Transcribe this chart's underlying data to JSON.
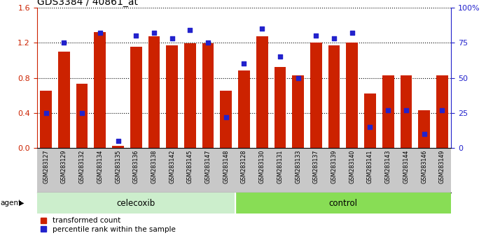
{
  "title": "GDS3384 / 40861_at",
  "samples": [
    "GSM283127",
    "GSM283129",
    "GSM283132",
    "GSM283134",
    "GSM283135",
    "GSM283136",
    "GSM283138",
    "GSM283142",
    "GSM283145",
    "GSM283147",
    "GSM283148",
    "GSM283128",
    "GSM283130",
    "GSM283131",
    "GSM283133",
    "GSM283137",
    "GSM283139",
    "GSM283140",
    "GSM283141",
    "GSM283143",
    "GSM283144",
    "GSM283146",
    "GSM283149"
  ],
  "transformed_count": [
    0.65,
    1.1,
    0.73,
    1.32,
    0.03,
    1.15,
    1.27,
    1.17,
    1.19,
    1.19,
    0.65,
    0.88,
    1.27,
    0.92,
    0.83,
    1.2,
    1.17,
    1.2,
    0.62,
    0.83,
    0.83,
    0.43,
    0.83
  ],
  "percentile_rank": [
    25,
    75,
    25,
    82,
    5,
    80,
    82,
    78,
    84,
    75,
    22,
    60,
    85,
    65,
    50,
    80,
    78,
    82,
    15,
    27,
    27,
    10,
    27
  ],
  "celecoxib_count": 11,
  "bar_color": "#cc2200",
  "dot_color": "#2222cc",
  "left_ylim": [
    0,
    1.6
  ],
  "right_ylim": [
    0,
    100
  ],
  "left_yticks": [
    0,
    0.4,
    0.8,
    1.2,
    1.6
  ],
  "right_yticks": [
    0,
    25,
    50,
    75,
    100
  ],
  "right_yticklabels": [
    "0",
    "25",
    "50",
    "75",
    "100%"
  ],
  "legend_items": [
    "transformed count",
    "percentile rank within the sample"
  ],
  "group_labels": [
    "celecoxib",
    "control"
  ],
  "celecoxib_bg": "#cceecc",
  "control_bg": "#88dd55",
  "xlabel_bg": "#c8c8c8"
}
